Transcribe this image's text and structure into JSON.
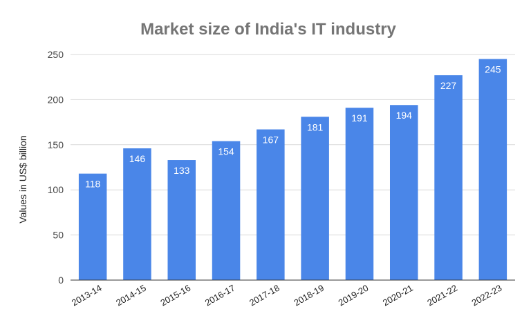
{
  "chart_data": {
    "type": "bar",
    "title": "Market size of India's IT industry",
    "xlabel": "",
    "ylabel": "Values in US$ billion",
    "ylim": [
      0,
      250
    ],
    "yticks": [
      0,
      50,
      100,
      150,
      200,
      250
    ],
    "grid": true,
    "legend": "none",
    "categories": [
      "2013-14",
      "2014-15",
      "2015-16",
      "2016-17",
      "2017-18",
      "2018-19",
      "2019-20",
      "2020-21",
      "2021-22",
      "2022-23"
    ],
    "values": [
      118,
      146,
      133,
      154,
      167,
      181,
      191,
      194,
      227,
      245
    ],
    "data_labels": [
      "118",
      "146",
      "133",
      "154",
      "167",
      "181",
      "191",
      "194",
      "227",
      "245"
    ],
    "bar_color": "#4a86e8"
  }
}
